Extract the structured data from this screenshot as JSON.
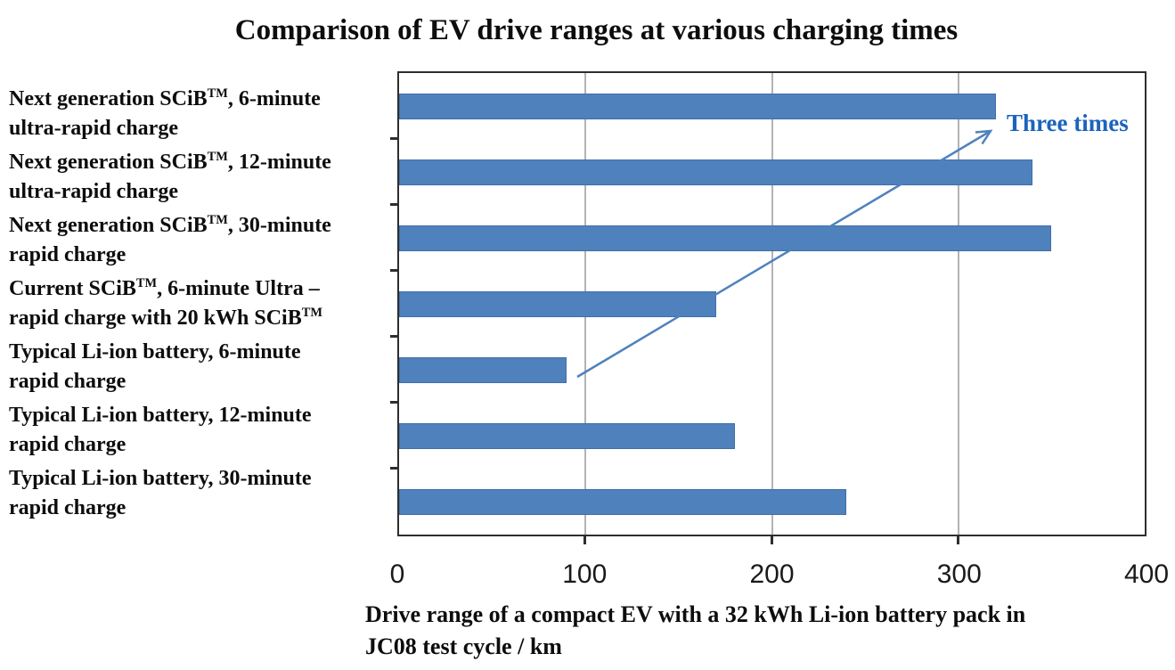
{
  "chart_data": {
    "type": "bar",
    "orientation": "horizontal",
    "title": "Comparison of EV drive ranges at various charging times",
    "categories": [
      "Next generation SCiB™, 6-minute ultra-rapid charge",
      "Next generation SCiB™, 12-minute ultra-rapid charge",
      "Next generation SCiB™, 30-minute rapid charge",
      "Current SCiB™, 6-minute Ultra – rapid charge with 20 kWh SCiB™",
      "Typical Li-ion battery, 6-minute rapid charge",
      "Typical Li-ion battery, 12-minute rapid charge",
      "Typical Li-ion battery, 30-minute rapid charge"
    ],
    "category_lines": [
      [
        "Next generation SCiB™, 6-minute",
        "ultra-rapid charge"
      ],
      [
        "Next generation SCiB™, 12-minute",
        "ultra-rapid charge"
      ],
      [
        "Next generation SCiB™, 30-minute",
        "rapid charge"
      ],
      [
        "Current SCiB™, 6-minute Ultra –",
        "rapid charge with 20 kWh SCiB™"
      ],
      [
        "Typical Li-ion battery, 6-minute",
        "rapid charge"
      ],
      [
        "Typical Li-ion battery, 12-minute",
        "rapid charge"
      ],
      [
        "Typical Li-ion battery, 30-minute",
        "rapid charge"
      ]
    ],
    "values": [
      320,
      340,
      350,
      170,
      90,
      180,
      240
    ],
    "unit": "km",
    "xlabel": "Drive range of a compact EV with a 32 kWh Li-ion battery pack in JC08 test cycle / km",
    "xlabel_lines": [
      "Drive range of a compact EV with a 32 kWh Li-ion battery pack in",
      "JC08 test cycle / km"
    ],
    "xlim": [
      0,
      400
    ],
    "xticks": [
      0,
      100,
      200,
      300,
      400
    ],
    "gridlines": [
      100,
      200,
      300
    ],
    "grid": true,
    "legend": false,
    "annotation": {
      "text": "Three times",
      "arrow_from_category": "Typical Li-ion battery, 6-minute rapid charge",
      "arrow_from_value": 90,
      "arrow_to_category": "Next generation SCiB™, 6-minute ultra-rapid charge",
      "arrow_to_value": 320
    },
    "colors": {
      "bar_fill": "#4f81bd",
      "bar_border": "#3f6fa8",
      "gridline": "#b3b3b3",
      "plot_border": "#2e2e2e",
      "annotation_text": "#1c63bd",
      "arrow": "#4f81bd",
      "text": "#0d0d0d"
    }
  }
}
